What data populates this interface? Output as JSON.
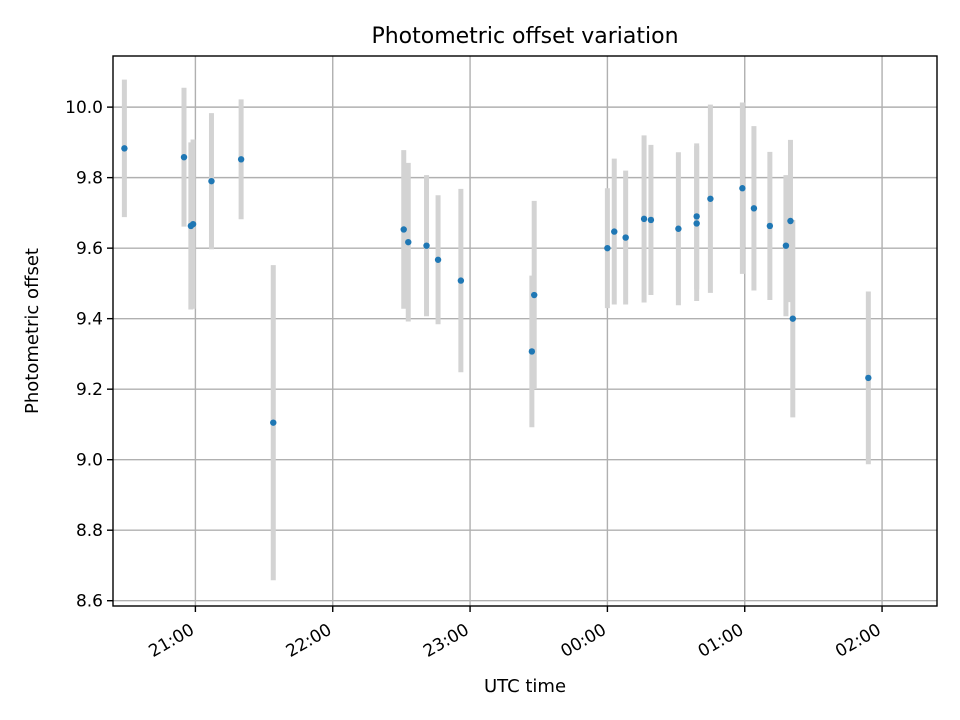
{
  "chart_data": {
    "type": "scatter",
    "title": "Photometric offset variation",
    "xlabel": "UTC time",
    "ylabel": "Photometric offset",
    "xlim": [
      -0.6,
      5.4
    ],
    "ylim": [
      8.585,
      10.145
    ],
    "x_ticks": [
      {
        "value": 0.0,
        "label": "21:00"
      },
      {
        "value": 1.0,
        "label": "22:00"
      },
      {
        "value": 2.0,
        "label": "23:00"
      },
      {
        "value": 3.0,
        "label": "00:00"
      },
      {
        "value": 4.0,
        "label": "01:00"
      },
      {
        "value": 5.0,
        "label": "02:00"
      }
    ],
    "y_ticks": [
      {
        "value": 8.6,
        "label": "8.6"
      },
      {
        "value": 8.8,
        "label": "8.8"
      },
      {
        "value": 9.0,
        "label": "9.0"
      },
      {
        "value": 9.2,
        "label": "9.2"
      },
      {
        "value": 9.4,
        "label": "9.4"
      },
      {
        "value": 9.6,
        "label": "9.6"
      },
      {
        "value": 9.8,
        "label": "9.8"
      },
      {
        "value": 10.0,
        "label": "10.0"
      }
    ],
    "grid": true,
    "x_units": "hours relative to 21:00 UTC",
    "series": [
      {
        "name": "offset",
        "marker_color": "#1f77b4",
        "errorbar_color": "#d3d3d3",
        "points": [
          {
            "x": -0.517,
            "y": 9.883,
            "yerr": 0.195
          },
          {
            "x": -0.083,
            "y": 9.858,
            "yerr": 0.197
          },
          {
            "x": -0.033,
            "y": 9.663,
            "yerr": 0.237
          },
          {
            "x": -0.017,
            "y": 9.668,
            "yerr": 0.24
          },
          {
            "x": 0.117,
            "y": 9.79,
            "yerr": 0.193
          },
          {
            "x": 0.333,
            "y": 9.852,
            "yerr": 0.17
          },
          {
            "x": 0.567,
            "y": 9.105,
            "yerr": 0.447
          },
          {
            "x": 1.517,
            "y": 9.653,
            "yerr": 0.225
          },
          {
            "x": 1.55,
            "y": 9.617,
            "yerr": 0.225
          },
          {
            "x": 1.683,
            "y": 9.607,
            "yerr": 0.2
          },
          {
            "x": 1.767,
            "y": 9.567,
            "yerr": 0.183
          },
          {
            "x": 1.933,
            "y": 9.508,
            "yerr": 0.26
          },
          {
            "x": 2.45,
            "y": 9.307,
            "yerr": 0.215
          },
          {
            "x": 2.467,
            "y": 9.467,
            "yerr": 0.267
          },
          {
            "x": 3.0,
            "y": 9.6,
            "yerr": 0.17
          },
          {
            "x": 3.05,
            "y": 9.647,
            "yerr": 0.207
          },
          {
            "x": 3.133,
            "y": 9.63,
            "yerr": 0.19
          },
          {
            "x": 3.267,
            "y": 9.683,
            "yerr": 0.237
          },
          {
            "x": 3.317,
            "y": 9.68,
            "yerr": 0.213
          },
          {
            "x": 3.517,
            "y": 9.655,
            "yerr": 0.217
          },
          {
            "x": 3.65,
            "y": 9.69,
            "yerr": 0.207
          },
          {
            "x": 3.65,
            "y": 9.67,
            "yerr": 0.22
          },
          {
            "x": 3.75,
            "y": 9.74,
            "yerr": 0.267
          },
          {
            "x": 3.983,
            "y": 9.77,
            "yerr": 0.243
          },
          {
            "x": 4.067,
            "y": 9.713,
            "yerr": 0.233
          },
          {
            "x": 4.183,
            "y": 9.663,
            "yerr": 0.21
          },
          {
            "x": 4.3,
            "y": 9.607,
            "yerr": 0.2
          },
          {
            "x": 4.333,
            "y": 9.677,
            "yerr": 0.23
          },
          {
            "x": 4.35,
            "y": 9.4,
            "yerr": 0.28
          },
          {
            "x": 4.9,
            "y": 9.232,
            "yerr": 0.245
          }
        ]
      }
    ]
  }
}
